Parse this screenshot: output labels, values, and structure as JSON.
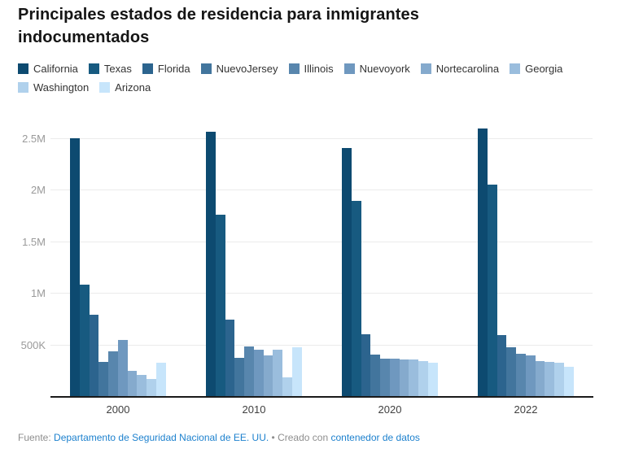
{
  "header": {
    "title": "Principales estados de residencia para inmigrantes indocumentados"
  },
  "footer": {
    "source_prefix": "Fuente:",
    "source_link": "Departamento de Seguridad Nacional de EE. UU.",
    "separator": "• Creado con",
    "tool_link": "contenedor de datos",
    "link_color": "#1d81ce"
  },
  "colors": {
    "title_text": "#151515",
    "legend_text": "#333333",
    "y_tick_text": "#9a9a9a",
    "x_tick_text": "#404040",
    "gridline": "#ebebeb",
    "axis_line": "#1a1a1a",
    "background": "#ffffff"
  },
  "chart_data": {
    "type": "bar",
    "grouping": "grouped",
    "title": "Principales estados de residencia para inmigrantes indocumentados",
    "xlabel": "",
    "ylabel": "",
    "legend_position": "top",
    "grid": "horizontal",
    "ylim": [
      0,
      2700000
    ],
    "categories": [
      "2000",
      "2010",
      "2020",
      "2022"
    ],
    "yticks": [
      {
        "label": "500K",
        "value": 500000
      },
      {
        "label": "1M",
        "value": 1000000
      },
      {
        "label": "1.5M",
        "value": 1500000
      },
      {
        "label": "2M",
        "value": 2000000
      },
      {
        "label": "2.5M",
        "value": 2500000
      }
    ],
    "series": [
      {
        "name": "California",
        "color": "#0d4a70",
        "values": [
          2510000,
          2570000,
          2410000,
          2600000
        ]
      },
      {
        "name": "Texas",
        "color": "#175a80",
        "values": [
          1090000,
          1770000,
          1900000,
          2060000
        ]
      },
      {
        "name": "Florida",
        "color": "#2c648e",
        "values": [
          800000,
          750000,
          610000,
          600000
        ]
      },
      {
        "name": "NuevoJersey",
        "color": "#42759d",
        "values": [
          340000,
          380000,
          410000,
          480000
        ]
      },
      {
        "name": "Illinois",
        "color": "#5886ad",
        "values": [
          440000,
          490000,
          370000,
          420000
        ]
      },
      {
        "name": "Nuevoyork",
        "color": "#6f98bf",
        "values": [
          550000,
          460000,
          370000,
          400000
        ]
      },
      {
        "name": "Nortecarolina",
        "color": "#85aacd",
        "values": [
          250000,
          400000,
          360000,
          350000
        ]
      },
      {
        "name": "Georgia",
        "color": "#9abddd",
        "values": [
          210000,
          460000,
          360000,
          340000
        ]
      },
      {
        "name": "Washington",
        "color": "#b0d1ec",
        "values": [
          170000,
          190000,
          350000,
          330000
        ]
      },
      {
        "name": "Arizona",
        "color": "#c7e5fb",
        "values": [
          330000,
          480000,
          330000,
          290000
        ]
      }
    ]
  }
}
